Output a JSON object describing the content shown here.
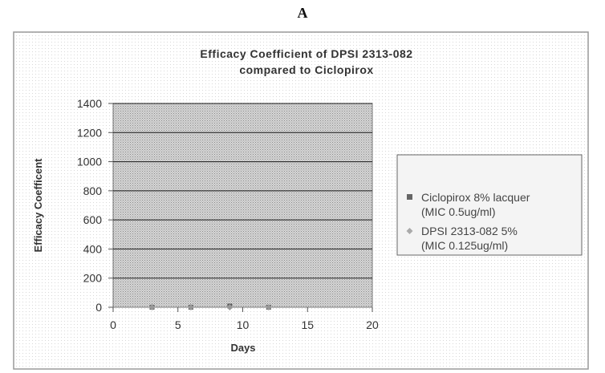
{
  "panel_label": "A",
  "chart_data": {
    "type": "scatter",
    "title": [
      "Efficacy Coefficient of DPSI 2313-082",
      "compared to Ciclopirox"
    ],
    "xlabel": "Days",
    "ylabel": "Efficacy Coefficent",
    "xlim": [
      0,
      20
    ],
    "ylim": [
      0,
      1400
    ],
    "xticks": [
      0,
      5,
      10,
      15,
      20
    ],
    "yticks": [
      0,
      200,
      400,
      600,
      800,
      1000,
      1200,
      1400
    ],
    "ytick_labels": [
      "0",
      "200",
      "400",
      "600",
      "800",
      "1000",
      "1200",
      "1400"
    ],
    "grid": true,
    "legend_position": "right",
    "series": [
      {
        "name": "Ciclopirox 8% lacquer",
        "name_line2": "(MIC 0.5ug/ml)",
        "marker": "square",
        "color": "#555555",
        "x": [
          3,
          6,
          9,
          12
        ],
        "y": [
          0,
          0,
          8,
          0
        ]
      },
      {
        "name": "DPSI 2313-082 5%",
        "name_line2": "(MIC 0.125ug/ml)",
        "marker": "diamond",
        "color": "#999999",
        "x": [
          3,
          6,
          9,
          12
        ],
        "y": [
          0,
          0,
          0,
          0
        ]
      }
    ]
  },
  "colors": {
    "plot_bg": "#c9c9c9",
    "gridline": "#1a1a1a",
    "frame": "#888888",
    "text": "#333333"
  }
}
